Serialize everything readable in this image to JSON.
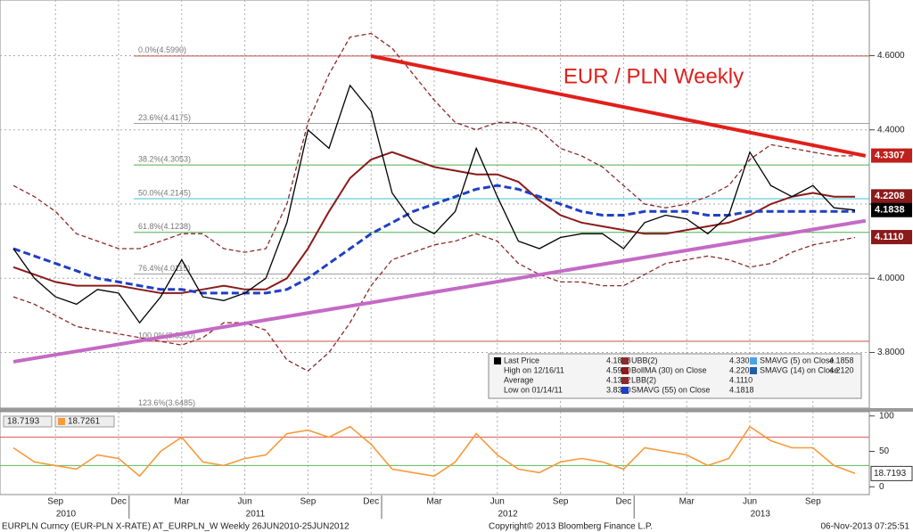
{
  "chart_data": [
    {
      "type": "line",
      "title": "EUR / PLN Weekly",
      "categories": [
        null,
        null,
        "Sep",
        null,
        null,
        "Dec",
        null,
        null,
        "Mar",
        null,
        null,
        "Jun",
        null,
        null,
        "Sep",
        null,
        null,
        "Dec",
        null,
        null,
        "Mar",
        null,
        null,
        "Jun",
        null,
        null,
        "Sep",
        null,
        null,
        "Dec",
        null,
        null,
        "Mar",
        null,
        null,
        "Jun",
        null,
        null,
        "Sep",
        null,
        null
      ],
      "years": [
        "2010",
        "2011",
        "2012",
        "2013"
      ],
      "ylim": [
        3.65,
        4.75
      ],
      "yticks": [
        {
          "value": 3.8,
          "label": "3.8000"
        },
        {
          "value": 4.0,
          "label": "4.0000"
        },
        {
          "value": 4.2,
          "label": "4.2000"
        },
        {
          "value": 4.4,
          "label": "4.4000"
        },
        {
          "value": 4.6,
          "label": "4.6000"
        }
      ],
      "grid": true,
      "series": [
        {
          "name": "Last Price",
          "legend_value": "4.1838",
          "color": "#000000",
          "values": [
            4.08,
            4.0,
            3.95,
            3.93,
            3.97,
            3.96,
            3.88,
            3.95,
            4.05,
            3.95,
            3.94,
            3.96,
            4.0,
            4.15,
            4.4,
            4.35,
            4.52,
            4.45,
            4.23,
            4.15,
            4.12,
            4.18,
            4.35,
            4.22,
            4.1,
            4.08,
            4.11,
            4.12,
            4.12,
            4.08,
            4.15,
            4.17,
            4.16,
            4.12,
            4.17,
            4.34,
            4.25,
            4.22,
            4.25,
            4.19,
            4.1838
          ]
        },
        {
          "name": "SMAVG (55) on Close",
          "legend_value": "4.1818",
          "color": "#1f3fc4",
          "dashed": true,
          "values": [
            4.08,
            4.06,
            4.04,
            4.02,
            4.0,
            3.99,
            3.98,
            3.97,
            3.97,
            3.96,
            3.96,
            3.96,
            3.96,
            3.97,
            4.0,
            4.04,
            4.08,
            4.12,
            4.15,
            4.18,
            4.2,
            4.22,
            4.24,
            4.25,
            4.24,
            4.22,
            4.2,
            4.18,
            4.17,
            4.17,
            4.18,
            4.18,
            4.18,
            4.17,
            4.17,
            4.18,
            4.18,
            4.18,
            4.18,
            4.18,
            4.18
          ]
        },
        {
          "name": "BollMA (30) on Close",
          "legend_value": "4.2208",
          "color": "#8b1a1a",
          "values": [
            4.03,
            4.01,
            3.99,
            3.98,
            3.98,
            3.98,
            3.97,
            3.96,
            3.96,
            3.97,
            3.98,
            3.97,
            3.97,
            4.0,
            4.08,
            4.18,
            4.27,
            4.32,
            4.34,
            4.32,
            4.3,
            4.29,
            4.28,
            4.28,
            4.26,
            4.21,
            4.17,
            4.15,
            4.14,
            4.13,
            4.12,
            4.12,
            4.13,
            4.14,
            4.15,
            4.17,
            4.2,
            4.22,
            4.23,
            4.22,
            4.22
          ]
        },
        {
          "name": "UBB(2)",
          "legend_value": "4.3307",
          "color": "#8b2a2a",
          "dashed": true,
          "values": [
            4.25,
            4.22,
            4.18,
            4.12,
            4.1,
            4.08,
            4.08,
            4.1,
            4.12,
            4.12,
            4.08,
            4.07,
            4.08,
            4.2,
            4.42,
            4.55,
            4.65,
            4.66,
            4.62,
            4.55,
            4.48,
            4.42,
            4.4,
            4.42,
            4.42,
            4.4,
            4.35,
            4.33,
            4.3,
            4.25,
            4.2,
            4.19,
            4.2,
            4.22,
            4.25,
            4.32,
            4.36,
            4.35,
            4.34,
            4.33,
            4.33
          ]
        },
        {
          "name": "LBB(2)",
          "legend_value": "4.1110",
          "color": "#8b2a2a",
          "dashed": true,
          "values": [
            3.95,
            3.93,
            3.9,
            3.87,
            3.86,
            3.85,
            3.84,
            3.83,
            3.82,
            3.84,
            3.88,
            3.88,
            3.86,
            3.78,
            3.75,
            3.8,
            3.88,
            3.98,
            4.05,
            4.07,
            4.09,
            4.1,
            4.12,
            4.1,
            4.04,
            4.01,
            3.99,
            3.99,
            3.98,
            3.98,
            4.01,
            4.04,
            4.05,
            4.06,
            4.05,
            4.03,
            4.04,
            4.07,
            4.09,
            4.1,
            4.11
          ]
        }
      ],
      "legend_extra": [
        {
          "name": "High on 12/16/11",
          "value": "4.5990"
        },
        {
          "name": "Average",
          "value": "4.1362"
        },
        {
          "name": "Low on 01/14/11",
          "value": "3.8300"
        },
        {
          "name": "SMAVG (5) on Close",
          "value": "4.1858",
          "color": "#4aa3e8"
        },
        {
          "name": "SMAVG (14) on Close",
          "value": "4.2120",
          "color": "#1f5fa8"
        }
      ],
      "trendlines": [
        {
          "color": "#e0201b",
          "x": [
            17,
            40.5
          ],
          "values": [
            4.599,
            4.33
          ]
        },
        {
          "color": "#c46ac4",
          "x": [
            0,
            40.5
          ],
          "values": [
            3.775,
            4.155
          ]
        }
      ],
      "fib_levels": [
        {
          "value": 4.599,
          "label": "0.0%(4.5990)",
          "color": "#c0504d"
        },
        {
          "value": 4.4175,
          "label": "23.6%(4.4175)",
          "color": "#a0a0a0"
        },
        {
          "value": 4.3053,
          "label": "38.2%(4.3053)",
          "color": "#4caf50"
        },
        {
          "value": 4.2145,
          "label": "50.0%(4.2145)",
          "color": "#3fc1d6"
        },
        {
          "value": 4.1238,
          "label": "61.8%(4.1238)",
          "color": "#4caf50"
        },
        {
          "value": 4.0115,
          "label": "76.4%(4.0115)",
          "color": "#a0a0a0"
        },
        {
          "value": 3.83,
          "label": "100.0%(3.8300)",
          "color": "#c0504d"
        },
        {
          "value": 3.6485,
          "label": "123.6%(3.6485)",
          "color": "#a0a0a0"
        }
      ],
      "price_tags": [
        {
          "value": 4.3307,
          "color": "#c0201b"
        },
        {
          "value": 4.2208,
          "color": "#8b1a1a"
        },
        {
          "value": 4.1838,
          "color": "#000000"
        },
        {
          "value": {
            "value": 4.111,
            "label": "4.1110"
          },
          "color": "#8b1a1a"
        }
      ]
    },
    {
      "type": "line",
      "label": "18.7193",
      "ylim": [
        -11,
        106
      ],
      "yticks": [
        0,
        50,
        100
      ],
      "hlines": [
        {
          "value": 70,
          "color": "#d9534f"
        },
        {
          "value": 30,
          "color": "#5cb85c"
        }
      ],
      "series": [
        {
          "name": "18.7261",
          "color": "#f79a3a",
          "values": [
            55,
            35,
            30,
            25,
            45,
            40,
            15,
            50,
            70,
            35,
            30,
            40,
            45,
            75,
            80,
            70,
            85,
            60,
            25,
            20,
            15,
            35,
            75,
            45,
            25,
            20,
            35,
            40,
            35,
            25,
            55,
            50,
            45,
            30,
            40,
            85,
            65,
            55,
            55,
            30,
            19
          ]
        }
      ],
      "last_value": 18.7193
    }
  ],
  "footer": {
    "left": "EURPLN Curncy (EUR-PLN X-RATE) AT_EURPLN_W  Weekly 26JUN2010-25JUN2012",
    "center": "Copyright© 2013 Bloomberg Finance L.P.",
    "right": "06-Nov-2013 07:25:51"
  }
}
